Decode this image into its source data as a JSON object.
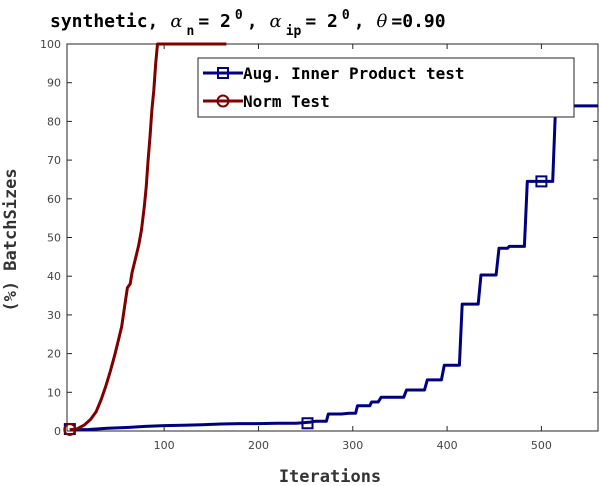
{
  "chart_data": {
    "type": "line",
    "title": {
      "prefix": "synthetic,",
      "alpha_symbol": "α",
      "alpha_n_sub": "n",
      "alpha_n_eq": " = 2",
      "alpha_n_exp": "0",
      "alpha_ip_sub": "ip",
      "alpha_ip_eq": " = 2",
      "alpha_ip_exp": "0",
      "theta_symbol": "θ",
      "theta_value": "=0.90",
      "separator": ",",
      "separator_spaced": " ,"
    },
    "xlabel": "Iterations",
    "ylabel": "(%) BatchSizes",
    "xlim": [
      -3,
      560
    ],
    "ylim": [
      0,
      100
    ],
    "xticks": [
      100,
      200,
      300,
      400,
      500
    ],
    "yticks": [
      0,
      10,
      20,
      30,
      40,
      50,
      60,
      70,
      80,
      90,
      100
    ],
    "legend_position": "top-right",
    "series": [
      {
        "name": "Aug. Inner Product test",
        "color": "#00007f",
        "marker": "square",
        "marker_points": [
          [
            0,
            0.5
          ],
          [
            252,
            2.0
          ],
          [
            500,
            64.5
          ]
        ],
        "points": [
          [
            0,
            0.3
          ],
          [
            20,
            0.4
          ],
          [
            40,
            0.7
          ],
          [
            60,
            0.9
          ],
          [
            80,
            1.2
          ],
          [
            100,
            1.4
          ],
          [
            120,
            1.5
          ],
          [
            140,
            1.6
          ],
          [
            160,
            1.8
          ],
          [
            180,
            1.9
          ],
          [
            200,
            1.9
          ],
          [
            220,
            2.0
          ],
          [
            240,
            2.0
          ],
          [
            255,
            2.3
          ],
          [
            260,
            2.5
          ],
          [
            272,
            2.5
          ],
          [
            274,
            4.4
          ],
          [
            288,
            4.4
          ],
          [
            296,
            4.6
          ],
          [
            303,
            4.6
          ],
          [
            305,
            6.5
          ],
          [
            318,
            6.5
          ],
          [
            320,
            7.5
          ],
          [
            327,
            7.5
          ],
          [
            330,
            8.7
          ],
          [
            354,
            8.7
          ],
          [
            357,
            10.6
          ],
          [
            376,
            10.6
          ],
          [
            379,
            13.2
          ],
          [
            394,
            13.2
          ],
          [
            397,
            17.0
          ],
          [
            413,
            17.0
          ],
          [
            416,
            32.8
          ],
          [
            433,
            32.8
          ],
          [
            436,
            40.3
          ],
          [
            452,
            40.3
          ],
          [
            455,
            47.2
          ],
          [
            464,
            47.2
          ],
          [
            466,
            47.7
          ],
          [
            482,
            47.7
          ],
          [
            485,
            64.5
          ],
          [
            512,
            64.5
          ],
          [
            515,
            84.0
          ],
          [
            560,
            84.0
          ]
        ]
      },
      {
        "name": "Norm Test",
        "color": "#7f0000",
        "marker": "circle",
        "marker_points": [
          [
            0,
            0.4
          ]
        ],
        "points": [
          [
            0,
            0.3
          ],
          [
            8,
            0.6
          ],
          [
            15,
            1.5
          ],
          [
            22,
            3.0
          ],
          [
            28,
            5.0
          ],
          [
            33,
            8.0
          ],
          [
            38,
            11.5
          ],
          [
            43,
            15.5
          ],
          [
            48,
            20.0
          ],
          [
            52,
            24.0
          ],
          [
            55,
            27.0
          ],
          [
            58,
            32.0
          ],
          [
            61,
            37.0
          ],
          [
            64,
            38.0
          ],
          [
            66,
            41.0
          ],
          [
            70,
            45.0
          ],
          [
            73,
            48.0
          ],
          [
            76,
            52.0
          ],
          [
            79,
            58.0
          ],
          [
            81,
            63.0
          ],
          [
            83,
            70.0
          ],
          [
            85,
            76.0
          ],
          [
            87,
            83.0
          ],
          [
            89,
            88.0
          ],
          [
            91,
            95.0
          ],
          [
            93,
            100.0
          ],
          [
            166,
            100.0
          ]
        ]
      }
    ]
  }
}
